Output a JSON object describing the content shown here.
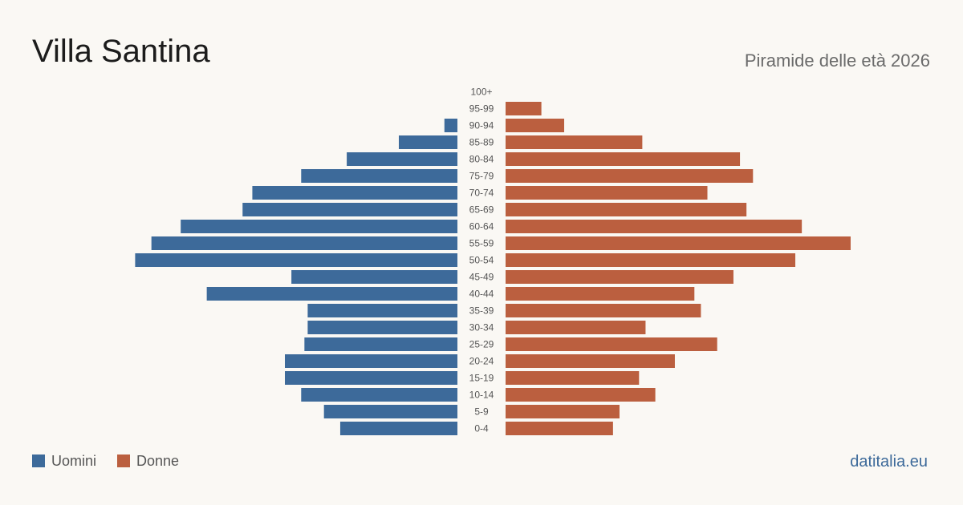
{
  "title": "Villa Santina",
  "subtitle": "Piramide delle età 2026",
  "brand": "datitalia.eu",
  "colors": {
    "men": "#3d6a9a",
    "women": "#bb5f3f",
    "brand": "#3d6a9a"
  },
  "legend": {
    "men_label": "Uomini",
    "women_label": "Donne"
  },
  "chart_data": {
    "type": "bar",
    "orientation": "horizontal",
    "layout": "population-pyramid",
    "categories": [
      "100+",
      "95-99",
      "90-94",
      "85-89",
      "80-84",
      "75-79",
      "70-74",
      "65-69",
      "60-64",
      "55-59",
      "50-54",
      "45-49",
      "40-44",
      "35-39",
      "30-34",
      "25-29",
      "20-24",
      "15-19",
      "10-14",
      "5-9",
      "0-4"
    ],
    "series": [
      {
        "name": "Uomini",
        "side": "left",
        "values": [
          0,
          0,
          4,
          18,
          34,
          48,
          63,
          66,
          85,
          94,
          99,
          51,
          77,
          46,
          46,
          47,
          53,
          53,
          48,
          41,
          36
        ]
      },
      {
        "name": "Donne",
        "side": "right",
        "values": [
          0,
          11,
          18,
          42,
          72,
          76,
          62,
          74,
          91,
          106,
          89,
          70,
          58,
          60,
          43,
          65,
          52,
          41,
          46,
          35,
          33
        ]
      }
    ],
    "xlim": [
      0,
      106
    ],
    "grid": false,
    "legend_position": "bottom-left"
  }
}
